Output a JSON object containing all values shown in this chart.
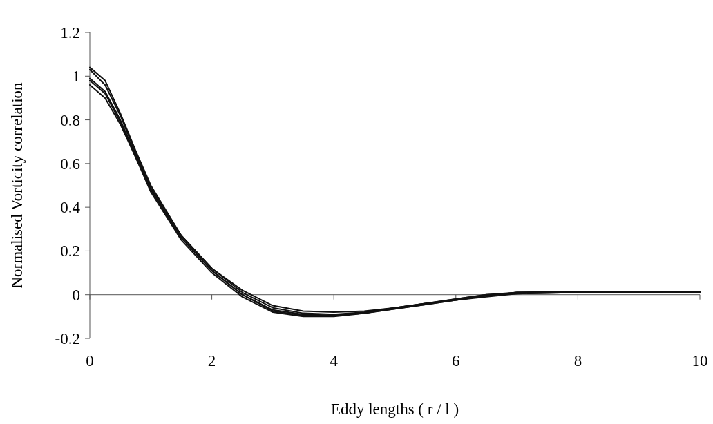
{
  "chart_data": {
    "type": "line",
    "xlabel": "Eddy lengths ( r / l )",
    "ylabel": "Normalised Vorticity correlation",
    "xlim": [
      0,
      10
    ],
    "ylim": [
      -0.2,
      1.2
    ],
    "xticks": [
      0,
      2,
      4,
      6,
      8,
      10
    ],
    "yticks": [
      -0.2,
      0,
      0.2,
      0.4,
      0.6,
      0.8,
      1,
      1.2
    ],
    "marker": "none",
    "line_style": "solid",
    "x": [
      0,
      0.25,
      0.5,
      0.75,
      1,
      1.5,
      2,
      2.5,
      3,
      3.5,
      4,
      4.5,
      5,
      5.5,
      6,
      6.5,
      7,
      8,
      9,
      10
    ],
    "series": [
      {
        "color": "#111111",
        "values": [
          1.04,
          0.98,
          0.83,
          0.66,
          0.5,
          0.27,
          0.12,
          0.02,
          -0.05,
          -0.075,
          -0.08,
          -0.075,
          -0.06,
          -0.04,
          -0.025,
          -0.005,
          0.01,
          0.015,
          0.015,
          0.015
        ]
      },
      {
        "color": "#111111",
        "values": [
          1.03,
          0.96,
          0.82,
          0.65,
          0.49,
          0.27,
          0.12,
          0.01,
          -0.06,
          -0.085,
          -0.09,
          -0.08,
          -0.06,
          -0.04,
          -0.02,
          0.0,
          0.01,
          0.015,
          0.015,
          0.015
        ]
      },
      {
        "color": "#111111",
        "values": [
          0.99,
          0.93,
          0.8,
          0.64,
          0.48,
          0.26,
          0.11,
          0.0,
          -0.07,
          -0.09,
          -0.095,
          -0.085,
          -0.065,
          -0.045,
          -0.025,
          -0.005,
          0.01,
          0.01,
          0.015,
          0.01
        ]
      },
      {
        "color": "#111111",
        "values": [
          0.98,
          0.92,
          0.79,
          0.63,
          0.48,
          0.26,
          0.11,
          0.0,
          -0.075,
          -0.095,
          -0.095,
          -0.085,
          -0.06,
          -0.04,
          -0.02,
          0.0,
          0.005,
          0.01,
          0.01,
          0.015
        ]
      },
      {
        "color": "#111111",
        "values": [
          0.96,
          0.9,
          0.78,
          0.63,
          0.47,
          0.25,
          0.1,
          -0.01,
          -0.08,
          -0.1,
          -0.1,
          -0.085,
          -0.065,
          -0.045,
          -0.025,
          -0.01,
          0.005,
          0.01,
          0.015,
          0.01
        ]
      }
    ]
  }
}
